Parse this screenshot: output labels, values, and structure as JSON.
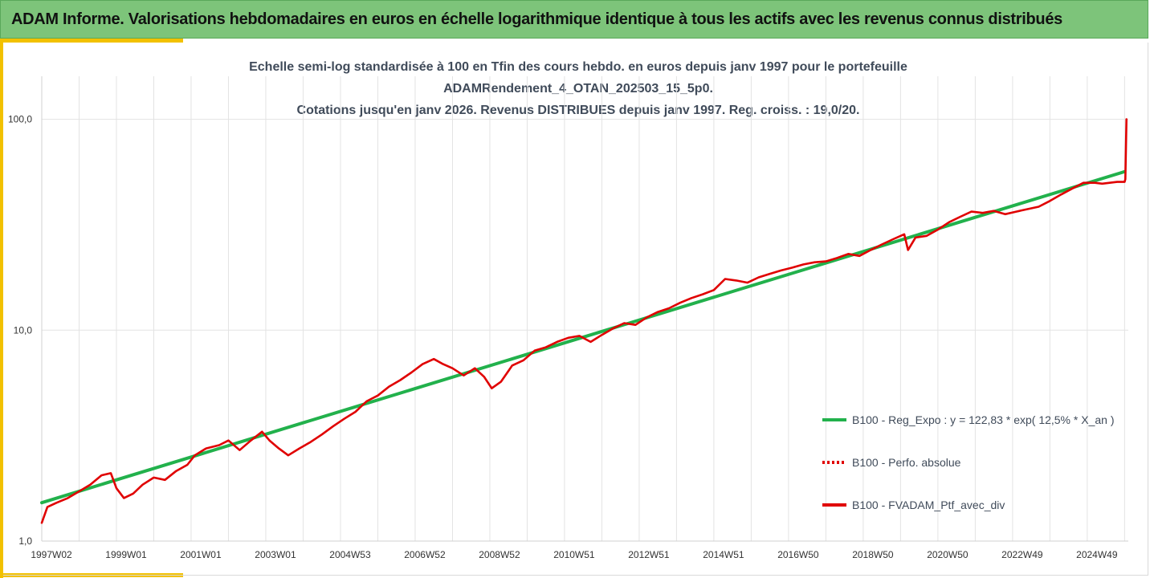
{
  "header": {
    "title": "ADAM Informe. Valorisations hebdomadaires en euros en échelle logarithmique identique à tous les actifs avec les revenus connus distribués"
  },
  "chart_data": {
    "type": "line",
    "title_lines": [
      "Echelle semi-log standardisée à 100 en Tfin des cours hebdo.  en euros depuis janv 1997 pour le portefeuille",
      "ADAMRendement_4_OTAN_202503_15_5p0.",
      "Cotations  jusqu'en janv 2026. Revenus DISTRIBUES depuis janv 1997. Reg. croiss. : 19,0/20."
    ],
    "y_scale": "log",
    "ylim": [
      1,
      160
    ],
    "y_ticks": [
      "1,0",
      "10,0",
      "100,0"
    ],
    "xlim": [
      1997.0,
      2026.1
    ],
    "x_ticks": [
      {
        "label": "1997W02",
        "x": 1997.0
      },
      {
        "label": "1999W01",
        "x": 1999.0
      },
      {
        "label": "2001W01",
        "x": 2001.0
      },
      {
        "label": "2003W01",
        "x": 2003.0
      },
      {
        "label": "2004W53",
        "x": 2005.0
      },
      {
        "label": "2006W52",
        "x": 2007.0
      },
      {
        "label": "2008W52",
        "x": 2009.0
      },
      {
        "label": "2010W51",
        "x": 2011.0
      },
      {
        "label": "2012W51",
        "x": 2013.0
      },
      {
        "label": "2014W51",
        "x": 2015.0
      },
      {
        "label": "2016W50",
        "x": 2017.0
      },
      {
        "label": "2018W50",
        "x": 2019.0
      },
      {
        "label": "2020W50",
        "x": 2021.0
      },
      {
        "label": "2022W49",
        "x": 2023.0
      },
      {
        "label": "2024W49",
        "x": 2025.0
      }
    ],
    "grid": "vertical-and-horizontal",
    "legend_position": "right",
    "series": [
      {
        "name": "B100 - Reg_Expo : y = 122,83 * exp( 12,5% *  X_an )",
        "color": "#22b14c",
        "style": "solid",
        "x": [
          1997.0,
          2026.0
        ],
        "y": [
          1.52,
          56.5
        ]
      },
      {
        "name": "B100 - Perfo. absolue",
        "color": "#e00000",
        "style": "dotted",
        "x": [],
        "y": []
      },
      {
        "name": "B100 - FVADAM_Ptf_avec_div",
        "color": "#e00000",
        "style": "solid",
        "x": [
          1997.0,
          1997.15,
          1997.4,
          1997.7,
          1998.0,
          1998.3,
          1998.6,
          1998.85,
          1999.0,
          1999.2,
          1999.45,
          1999.7,
          2000.0,
          2000.3,
          2000.6,
          2000.9,
          2001.1,
          2001.4,
          2001.75,
          2002.0,
          2002.3,
          2002.6,
          2002.9,
          2003.1,
          2003.35,
          2003.6,
          2003.9,
          2004.2,
          2004.5,
          2004.8,
          2005.1,
          2005.4,
          2005.7,
          2006.0,
          2006.3,
          2006.6,
          2006.9,
          2007.2,
          2007.5,
          2007.75,
          2008.0,
          2008.3,
          2008.6,
          2008.85,
          2009.05,
          2009.3,
          2009.6,
          2009.9,
          2010.2,
          2010.5,
          2010.8,
          2011.1,
          2011.4,
          2011.7,
          2012.0,
          2012.3,
          2012.6,
          2012.9,
          2013.2,
          2013.5,
          2013.8,
          2014.1,
          2014.4,
          2014.7,
          2015.0,
          2015.3,
          2015.6,
          2015.9,
          2016.2,
          2016.5,
          2016.8,
          2017.1,
          2017.4,
          2017.7,
          2018.0,
          2018.3,
          2018.6,
          2018.9,
          2019.2,
          2019.5,
          2019.8,
          2020.1,
          2020.2,
          2020.4,
          2020.7,
          2021.0,
          2021.3,
          2021.6,
          2021.9,
          2022.2,
          2022.5,
          2022.8,
          2023.1,
          2023.4,
          2023.7,
          2024.0,
          2024.3,
          2024.6,
          2024.9,
          2025.2,
          2025.4,
          2025.6,
          2025.8,
          2026.0,
          2026.02,
          2026.05
        ],
        "y": [
          1.22,
          1.45,
          1.52,
          1.6,
          1.72,
          1.85,
          2.05,
          2.1,
          1.78,
          1.6,
          1.68,
          1.85,
          2.0,
          1.95,
          2.15,
          2.3,
          2.55,
          2.75,
          2.85,
          3.0,
          2.7,
          3.0,
          3.3,
          3.0,
          2.75,
          2.55,
          2.75,
          2.95,
          3.2,
          3.5,
          3.8,
          4.1,
          4.6,
          4.9,
          5.4,
          5.8,
          6.3,
          6.9,
          7.3,
          6.9,
          6.6,
          6.1,
          6.6,
          6.0,
          5.3,
          5.7,
          6.8,
          7.2,
          8.0,
          8.3,
          8.8,
          9.2,
          9.4,
          8.8,
          9.5,
          10.2,
          10.8,
          10.6,
          11.5,
          12.2,
          12.7,
          13.5,
          14.2,
          14.8,
          15.5,
          17.5,
          17.2,
          16.8,
          17.8,
          18.5,
          19.2,
          19.8,
          20.5,
          21.0,
          21.2,
          22.0,
          23.0,
          22.5,
          24.0,
          25.5,
          27.0,
          28.5,
          24.0,
          27.5,
          28.0,
          30.0,
          32.5,
          34.5,
          36.5,
          36.0,
          36.8,
          35.5,
          36.5,
          37.5,
          38.5,
          41.0,
          44.0,
          47.0,
          50.0,
          50.0,
          49.5,
          50.0,
          50.5,
          50.5,
          52.0,
          100.0
        ]
      }
    ]
  }
}
